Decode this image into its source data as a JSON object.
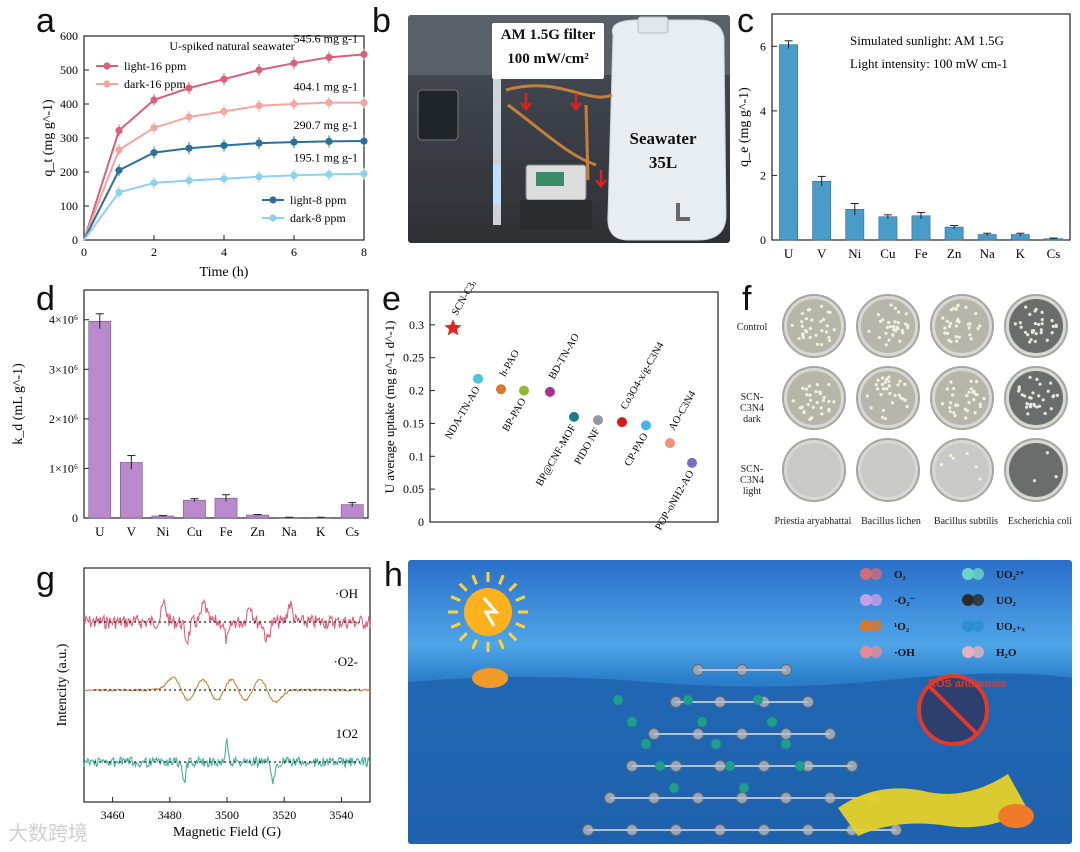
{
  "panel_labels": {
    "a": "a",
    "b": "b",
    "c": "c",
    "d": "d",
    "e": "e",
    "f": "f",
    "g": "g",
    "h": "h"
  },
  "chart_data": [
    {
      "id": "a",
      "type": "line",
      "title": "U-spiked natural seawater",
      "xlabel": "Time (h)",
      "ylabel": "q_t (mg g^-1)",
      "xlim": [
        0,
        8
      ],
      "ylim": [
        0,
        600
      ],
      "xticks": [
        0,
        2,
        4,
        6,
        8
      ],
      "yticks": [
        0,
        100,
        200,
        300,
        400,
        500,
        600
      ],
      "x": [
        0,
        1,
        2,
        3,
        4,
        5,
        6,
        7,
        8
      ],
      "series": [
        {
          "name": "light-16 ppm",
          "color": "#d8607a",
          "values": [
            0,
            322,
            412,
            447,
            473,
            500,
            520,
            537,
            546
          ],
          "end_label": "545.6 mg g-1"
        },
        {
          "name": "dark-16 ppm",
          "color": "#f2a6a0",
          "values": [
            0,
            265,
            330,
            362,
            378,
            395,
            400,
            404,
            404
          ],
          "end_label": "404.1 mg g-1"
        },
        {
          "name": "light-8 ppm",
          "color": "#2d6f9c",
          "values": [
            0,
            205,
            257,
            270,
            278,
            285,
            288,
            290,
            291
          ],
          "end_label": "290.7 mg g-1"
        },
        {
          "name": "dark-8 ppm",
          "color": "#8fd0ee",
          "values": [
            0,
            140,
            168,
            175,
            180,
            186,
            190,
            193,
            195
          ],
          "end_label": "195.1 mg g-1"
        }
      ]
    },
    {
      "id": "c",
      "type": "bar",
      "ylabel": "q_e (mg g^-1)",
      "ylim": [
        0,
        7
      ],
      "yticks": [
        0,
        2,
        4,
        6
      ],
      "annotation1": "Simulated sunlight: AM 1.5G",
      "annotation2": "Light intensity: 100 mW cm-1",
      "categories": [
        "U",
        "V",
        "Ni",
        "Cu",
        "Fe",
        "Zn",
        "Na",
        "K",
        "Cs"
      ],
      "values": [
        6.05,
        1.82,
        0.95,
        0.72,
        0.75,
        0.4,
        0.17,
        0.17,
        0.04
      ],
      "errors": [
        0.12,
        0.15,
        0.18,
        0.06,
        0.1,
        0.05,
        0.04,
        0.04,
        0.02
      ],
      "color": "#4a9cc8"
    },
    {
      "id": "d",
      "type": "bar",
      "ylabel": "k_d (mL g^-1)",
      "ylim": [
        0,
        4.6
      ],
      "yticks": [
        0,
        1,
        2,
        3,
        4
      ],
      "ytick_labels": [
        "0",
        "1×10⁶",
        "2×10⁶",
        "3×10⁶",
        "4×10⁶"
      ],
      "categories": [
        "U",
        "V",
        "Ni",
        "Cu",
        "Fe",
        "Zn",
        "Na",
        "K",
        "Cs"
      ],
      "values": [
        3.97,
        1.12,
        0.04,
        0.36,
        0.4,
        0.06,
        0.01,
        0.01,
        0.27
      ],
      "errors": [
        0.15,
        0.14,
        0.01,
        0.03,
        0.07,
        0.01,
        0.005,
        0.005,
        0.04
      ],
      "color": "#b98acb"
    },
    {
      "id": "e",
      "type": "scatter",
      "ylabel": "U average uptake (mg g^-1 d^-1)",
      "ylim": [
        0,
        0.35
      ],
      "yticks": [
        0,
        0.05,
        0.1,
        0.15,
        0.2,
        0.25,
        0.3
      ],
      "points": [
        {
          "label": "SCN-C3N4",
          "y": 0.295,
          "color": "#e8231d",
          "marker": "star"
        },
        {
          "label": "NDA-TN-AO",
          "y": 0.218,
          "color": "#4fc3d8"
        },
        {
          "label": "h-PAO",
          "y": 0.202,
          "color": "#d9772a"
        },
        {
          "label": "BP-PAO",
          "y": 0.2,
          "color": "#8fb82f"
        },
        {
          "label": "BD-TN-AO",
          "y": 0.198,
          "color": "#a8328f"
        },
        {
          "label": "BP@CNF-MOF",
          "y": 0.16,
          "color": "#1a7e86"
        },
        {
          "label": "PIDO NF",
          "y": 0.155,
          "color": "#8c99a0"
        },
        {
          "label": "Co3O4-x/g-C3N4",
          "y": 0.152,
          "color": "#d11c1c"
        },
        {
          "label": "CP-PAO",
          "y": 0.147,
          "color": "#4ab3e6"
        },
        {
          "label": "AO-C3N4",
          "y": 0.12,
          "color": "#f0927a"
        },
        {
          "label": "POP-oNH2-AO",
          "y": 0.09,
          "color": "#7a6cc2"
        }
      ]
    },
    {
      "id": "g",
      "type": "line",
      "xlabel": "Magnetic Field (G)",
      "ylabel": "Intencity (a.u.)",
      "xlim": [
        3450,
        3550
      ],
      "xticks": [
        3460,
        3480,
        3500,
        3520,
        3540
      ],
      "series": [
        {
          "name": "·OH",
          "color": "#e0607a"
        },
        {
          "name": "·O2-",
          "color": "#c8843a"
        },
        {
          "name": "1O2",
          "color": "#4ab0a0"
        }
      ]
    }
  ],
  "photo_b": {
    "filter_text1": "AM 1.5G filter",
    "filter_text2": "100 mW/cm²",
    "seawater1": "Seawater",
    "seawater2": "35L"
  },
  "panel_f": {
    "rows": [
      "Control",
      "SCN-C3N4 dark",
      "SCN-C3N4 light"
    ],
    "cols": [
      "Priestia aryabhattai",
      "Bacillus lichen",
      "Bacillus subtilis",
      "Escherichia coli"
    ]
  },
  "legend_h": [
    {
      "sym": "O2",
      "label": "O₂"
    },
    {
      "sym": "UO22+",
      "label": "UO₂²⁺"
    },
    {
      "sym": "·O2-",
      "label": "·O₂⁻"
    },
    {
      "sym": "UO2",
      "label": "UO₂"
    },
    {
      "sym": "1O2",
      "label": "¹O₂"
    },
    {
      "sym": "UO2+x",
      "label": "UO₂₊ₓ"
    },
    {
      "sym": "·OH",
      "label": "·OH"
    },
    {
      "sym": "H2O",
      "label": "H₂O"
    }
  ],
  "ros_text": "ROS antibiosis",
  "watermark": "大数跨境"
}
